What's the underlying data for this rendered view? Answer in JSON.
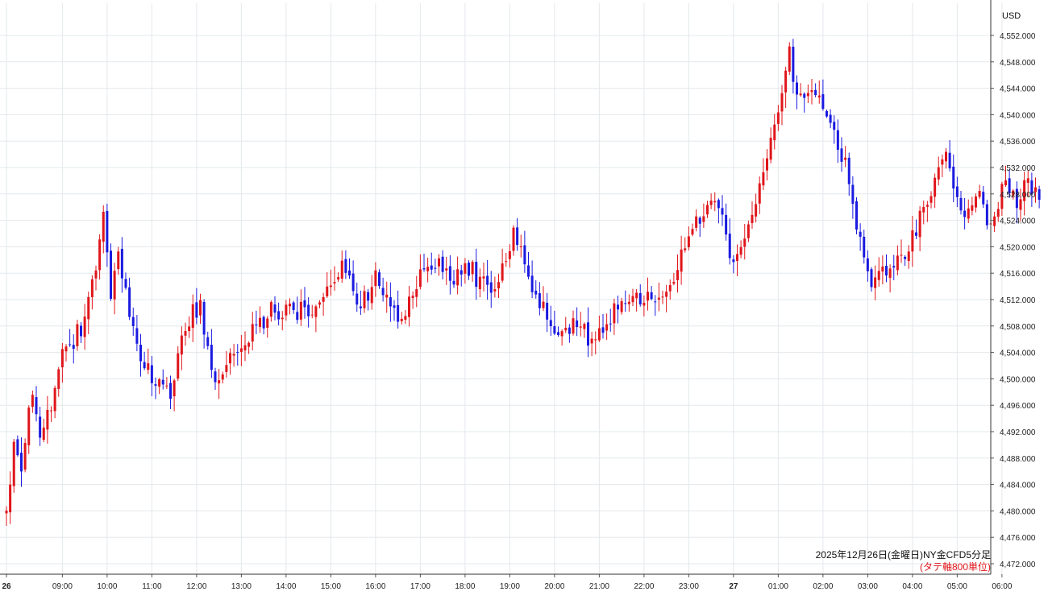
{
  "chart_data": {
    "type": "candlestick",
    "currency_label": "USD",
    "caption": "2025年12月26日(金曜日)NY金CFD5分足",
    "subcaption": "(タテ軸800単位)",
    "y_range": [
      4470,
      4554
    ],
    "y_ticks": [
      4552,
      4548,
      4544,
      4540,
      4536,
      4532,
      4528,
      4524,
      4520,
      4516,
      4512,
      4508,
      4504,
      4500,
      4496,
      4492,
      4488,
      4484,
      4480,
      4476,
      4472
    ],
    "y_tick_labels": [
      "4,552.000",
      "4,548.000",
      "4,544.000",
      "4,540.000",
      "4,536.000",
      "4,532.000",
      "4,528.000",
      "4,524.000",
      "4,520.000",
      "4,516.000",
      "4,512.000",
      "4,508.000",
      "4,504.000",
      "4,500.000",
      "4,496.000",
      "4,492.000",
      "4,488.000",
      "4,484.000",
      "4,480.000",
      "4,476.000",
      "4,472.000"
    ],
    "x_ticks": [
      {
        "label": "26",
        "bar": 0,
        "bold": true
      },
      {
        "label": "09:00",
        "bar": 15,
        "bold": false
      },
      {
        "label": "10:00",
        "bar": 27,
        "bold": false
      },
      {
        "label": "11:00",
        "bar": 39,
        "bold": false
      },
      {
        "label": "12:00",
        "bar": 51,
        "bold": false
      },
      {
        "label": "13:00",
        "bar": 63,
        "bold": false
      },
      {
        "label": "14:00",
        "bar": 75,
        "bold": false
      },
      {
        "label": "15:00",
        "bar": 87,
        "bold": false
      },
      {
        "label": "16:00",
        "bar": 99,
        "bold": false
      },
      {
        "label": "17:00",
        "bar": 111,
        "bold": false
      },
      {
        "label": "18:00",
        "bar": 123,
        "bold": false
      },
      {
        "label": "19:00",
        "bar": 135,
        "bold": false
      },
      {
        "label": "20:00",
        "bar": 147,
        "bold": false
      },
      {
        "label": "21:00",
        "bar": 159,
        "bold": false
      },
      {
        "label": "22:00",
        "bar": 171,
        "bold": false
      },
      {
        "label": "23:00",
        "bar": 183,
        "bold": false
      },
      {
        "label": "27",
        "bar": 195,
        "bold": true
      },
      {
        "label": "01:00",
        "bar": 207,
        "bold": false
      },
      {
        "label": "02:00",
        "bar": 219,
        "bold": false
      },
      {
        "label": "03:00",
        "bar": 231,
        "bold": false
      },
      {
        "label": "04:00",
        "bar": 243,
        "bold": false
      },
      {
        "label": "05:00",
        "bar": 255,
        "bold": false
      },
      {
        "label": "06:00",
        "bar": 267,
        "bold": false
      }
    ],
    "grid": true,
    "up_color": "#e0161b",
    "down_color": "#1a1ae0",
    "grid_color": "#e3e8ec",
    "close_path": [
      [
        0,
        4479.5
      ],
      [
        2,
        4490.0
      ],
      [
        4,
        4487.5
      ],
      [
        7,
        4498.5
      ],
      [
        9,
        4490.5
      ],
      [
        12,
        4495.5
      ],
      [
        15,
        4503.5
      ],
      [
        20,
        4507.5
      ],
      [
        24,
        4516.5
      ],
      [
        26,
        4525.5
      ],
      [
        28,
        4511.5
      ],
      [
        30,
        4518.5
      ],
      [
        35,
        4504.0
      ],
      [
        39,
        4500.5
      ],
      [
        44,
        4497.5
      ],
      [
        48,
        4508.5
      ],
      [
        52,
        4511.0
      ],
      [
        56,
        4500.0
      ],
      [
        61,
        4503.5
      ],
      [
        66,
        4507.0
      ],
      [
        71,
        4510.5
      ],
      [
        78,
        4510.5
      ],
      [
        85,
        4511.0
      ],
      [
        90,
        4518.5
      ],
      [
        95,
        4510.5
      ],
      [
        99,
        4515.5
      ],
      [
        103,
        4510.0
      ],
      [
        107,
        4509.5
      ],
      [
        111,
        4515.5
      ],
      [
        115,
        4517.5
      ],
      [
        120,
        4514.5
      ],
      [
        124,
        4517.0
      ],
      [
        130,
        4512.5
      ],
      [
        136,
        4522.5
      ],
      [
        140,
        4515.0
      ],
      [
        144,
        4510.5
      ],
      [
        148,
        4507.0
      ],
      [
        153,
        4508.5
      ],
      [
        158,
        4505.0
      ],
      [
        163,
        4510.5
      ],
      [
        168,
        4513.0
      ],
      [
        172,
        4512.5
      ],
      [
        177,
        4514.0
      ],
      [
        182,
        4519.0
      ],
      [
        188,
        4527.0
      ],
      [
        192,
        4524.0
      ],
      [
        195,
        4517.5
      ],
      [
        198,
        4522.0
      ],
      [
        203,
        4531.0
      ],
      [
        207,
        4541.5
      ],
      [
        210,
        4549.0
      ],
      [
        212,
        4541.5
      ],
      [
        216,
        4545.0
      ],
      [
        221,
        4539.5
      ],
      [
        225,
        4532.0
      ],
      [
        228,
        4524.0
      ],
      [
        232,
        4514.5
      ],
      [
        236,
        4516.0
      ],
      [
        240,
        4518.0
      ],
      [
        244,
        4523.0
      ],
      [
        248,
        4528.5
      ],
      [
        252,
        4533.0
      ],
      [
        256,
        4524.5
      ],
      [
        260,
        4528.5
      ],
      [
        264,
        4523.0
      ],
      [
        268,
        4531.0
      ],
      [
        271,
        4525.5
      ],
      [
        274,
        4530.5
      ],
      [
        277,
        4527.5
      ]
    ]
  }
}
